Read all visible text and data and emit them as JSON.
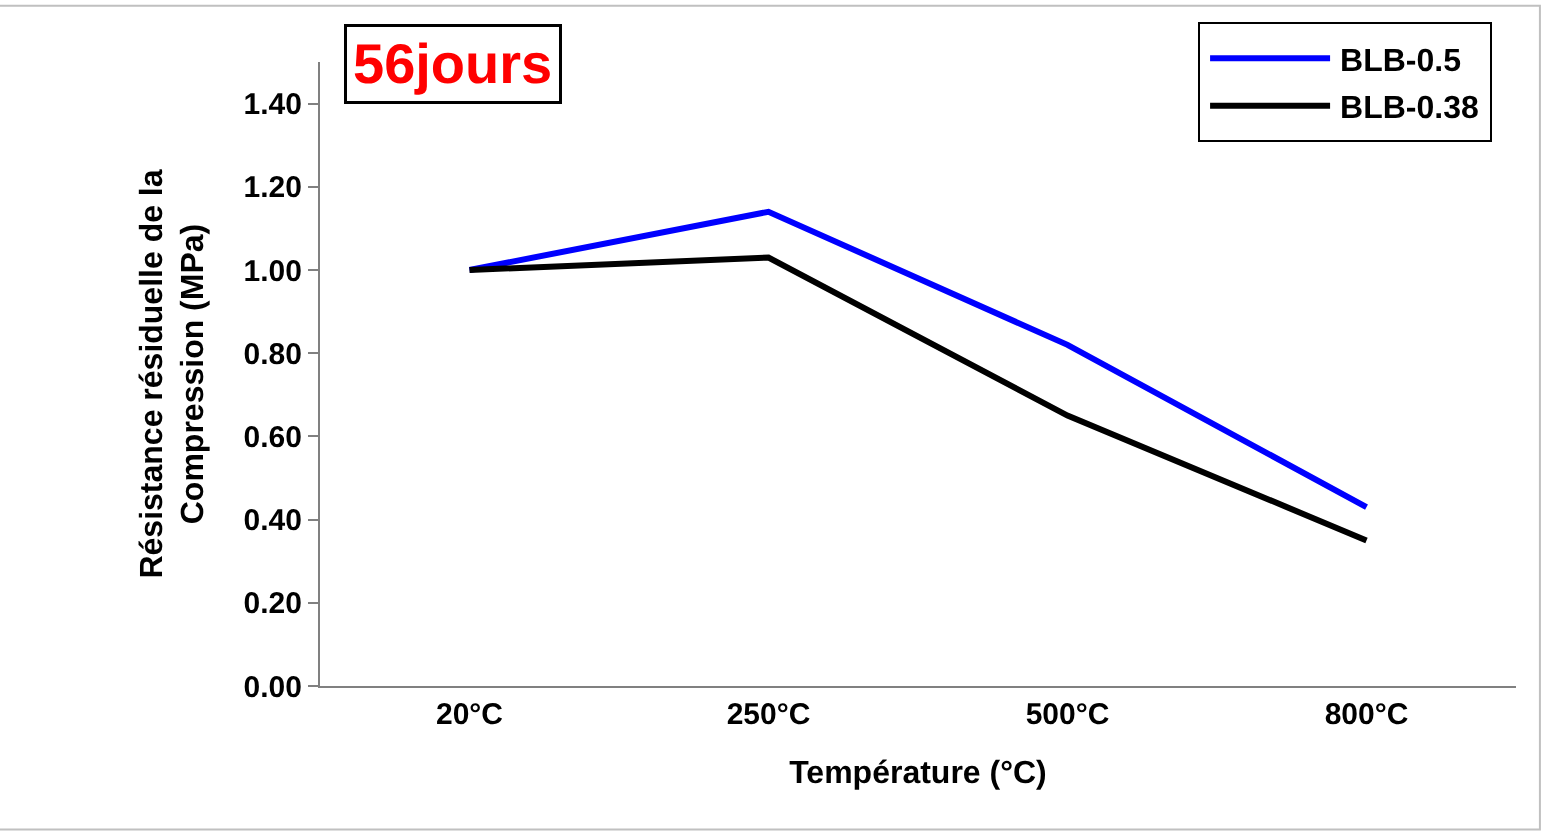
{
  "chart_data": {
    "type": "line",
    "xlabel": "Température (°C)",
    "ylabel": "Résistance résiduelle de la\nCompression (MPa)",
    "annotations": [
      "56jours"
    ],
    "categories": [
      "20°C",
      "250°C",
      "500°C",
      "800°C"
    ],
    "series": [
      {
        "name": "BLB-0.5",
        "color": "#0000ff",
        "values": [
          1.0,
          1.14,
          0.82,
          0.43
        ]
      },
      {
        "name": "BLB-0.38",
        "color": "#000000",
        "values": [
          1.0,
          1.03,
          0.65,
          0.35
        ]
      }
    ],
    "ylim": [
      0,
      1.5
    ],
    "yticks": [
      {
        "value": 0,
        "label": "0.00"
      },
      {
        "value": 0.2,
        "label": "0.20"
      },
      {
        "value": 0.4,
        "label": "0.40"
      },
      {
        "value": 0.6,
        "label": "0.60"
      },
      {
        "value": 0.8,
        "label": "0.80"
      },
      {
        "value": 1.0,
        "label": "1.00"
      },
      {
        "value": 1.2,
        "label": "1.20"
      },
      {
        "value": 1.4,
        "label": "1.40"
      }
    ],
    "legend": "top right",
    "marker": "none",
    "line_style": "solid"
  }
}
